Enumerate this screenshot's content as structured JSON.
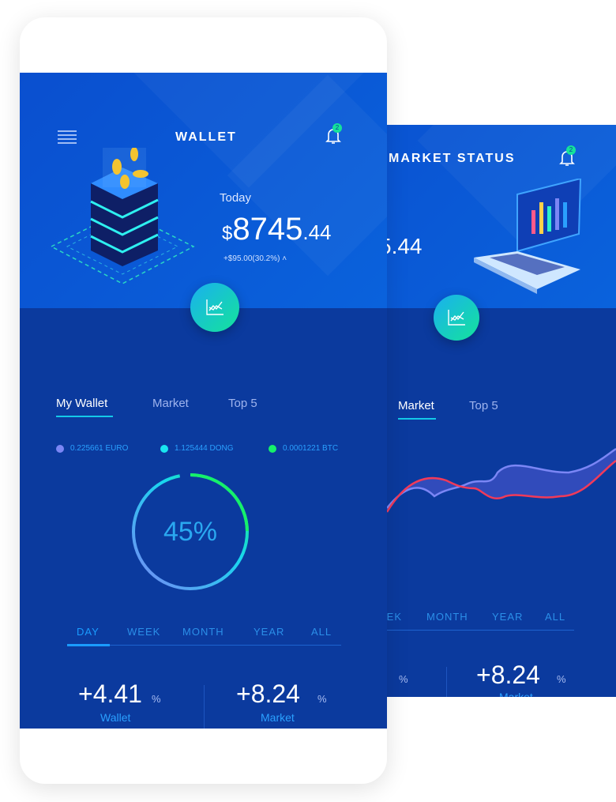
{
  "back_screen": {
    "title": "MARKET STATUS",
    "notification_count": "2",
    "balance_fragment": "5.44",
    "tabs": [
      "Market",
      "Top 5"
    ],
    "active_tab": "Market",
    "periods": [
      "EEK",
      "MONTH",
      "YEAR",
      "ALL"
    ],
    "stats": [
      {
        "unit": "%"
      },
      {
        "value": "+8.24",
        "unit": "%",
        "label": "Market"
      }
    ]
  },
  "front_screen": {
    "title": "WALLET",
    "notification_count": "2",
    "today_label": "Today",
    "currency": "$",
    "balance_int": "8745",
    "balance_dec": ".44",
    "change": "+$95.00(30.2%)",
    "tabs": [
      "My Wallet",
      "Market",
      "Top 5"
    ],
    "active_tab": "My Wallet",
    "legend": [
      {
        "label": "0.225661 EURO",
        "color": "#7b86f5"
      },
      {
        "label": "1.125444 DONG",
        "color": "#19e6f0"
      },
      {
        "label": "0.0001221 BTC",
        "color": "#16f06a"
      }
    ],
    "progress_percent": 45,
    "progress_label": "45%",
    "periods": [
      "DAY",
      "WEEK",
      "MONTH",
      "YEAR",
      "ALL"
    ],
    "active_period": "DAY",
    "stats": [
      {
        "value": "+4.41",
        "unit": "%",
        "label": "Wallet"
      },
      {
        "value": "+8.24",
        "unit": "%",
        "label": "Market"
      }
    ]
  },
  "colors": {
    "header_blue": "#0a5ad6",
    "body_blue": "#0b3a9e",
    "accent_cyan": "#14c9e8",
    "accent_green": "#14e39a"
  }
}
